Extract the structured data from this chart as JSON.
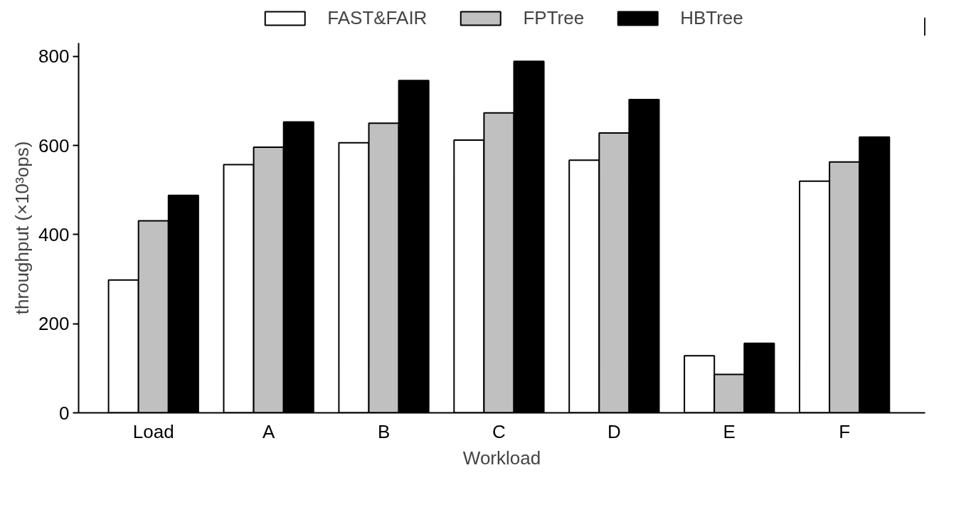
{
  "chart_data": {
    "type": "bar",
    "xlabel": "Workload",
    "ylabel": "throughput (×10³ops)",
    "categories": [
      "Load",
      "A",
      "B",
      "C",
      "D",
      "E",
      "F"
    ],
    "series": [
      {
        "name": "FAST&FAIR",
        "color": "#ffffff",
        "values": [
          298,
          557,
          606,
          612,
          567,
          128,
          520
        ]
      },
      {
        "name": "FPTree",
        "color": "#c0c0c0",
        "values": [
          431,
          596,
          650,
          673,
          628,
          86,
          563
        ]
      },
      {
        "name": "HBTree",
        "color": "#000000",
        "values": [
          488,
          653,
          746,
          789,
          703,
          156,
          619
        ]
      }
    ],
    "ylim": [
      0,
      830
    ],
    "yticks": [
      0,
      200,
      400,
      600,
      800
    ],
    "grid": false,
    "legend": "top"
  }
}
